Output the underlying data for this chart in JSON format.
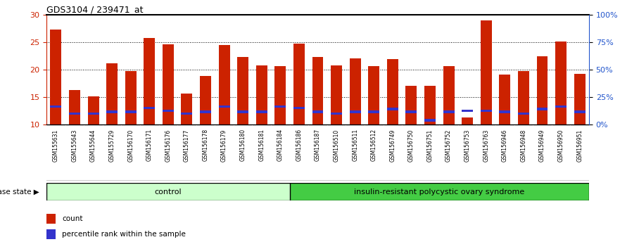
{
  "title": "GDS3104 / 239471_at",
  "samples": [
    "GSM155631",
    "GSM155643",
    "GSM155644",
    "GSM155729",
    "GSM156170",
    "GSM156171",
    "GSM156176",
    "GSM156177",
    "GSM156178",
    "GSM156179",
    "GSM156180",
    "GSM156181",
    "GSM156184",
    "GSM156186",
    "GSM156187",
    "GSM156510",
    "GSM156511",
    "GSM156512",
    "GSM156749",
    "GSM156750",
    "GSM156751",
    "GSM156752",
    "GSM156753",
    "GSM156763",
    "GSM156946",
    "GSM156948",
    "GSM156949",
    "GSM156950",
    "GSM156951"
  ],
  "count_values": [
    27.3,
    16.3,
    15.1,
    21.2,
    19.8,
    25.8,
    24.6,
    15.7,
    18.8,
    24.5,
    22.3,
    20.8,
    20.7,
    24.8,
    22.3,
    20.8,
    22.1,
    20.6,
    22.0,
    17.0,
    17.1,
    20.7,
    11.3,
    29.0,
    19.1,
    19.8,
    22.4,
    25.2,
    19.2
  ],
  "percentile_values": [
    13.3,
    12.0,
    12.0,
    12.3,
    12.3,
    13.0,
    12.5,
    12.0,
    12.3,
    13.3,
    12.3,
    12.3,
    13.3,
    13.0,
    12.3,
    12.0,
    12.3,
    12.3,
    12.8,
    12.3,
    10.8,
    12.3,
    12.5,
    12.5,
    12.3,
    12.0,
    12.8,
    13.3,
    12.3
  ],
  "control_count": 13,
  "control_label": "control",
  "disease_label": "insulin-resistant polycystic ovary syndrome",
  "disease_state_label": "disease state",
  "ymin": 10,
  "ymax": 30,
  "yticks_left": [
    10,
    15,
    20,
    25,
    30
  ],
  "yticks_right": [
    0,
    25,
    50,
    75,
    100
  ],
  "bar_color": "#cc2200",
  "percentile_color": "#3333cc",
  "bar_width": 0.6,
  "plot_bg": "#ffffff",
  "control_bg": "#ccffcc",
  "disease_bg": "#44cc44",
  "xticklabel_bg": "#cccccc",
  "legend_count_label": "count",
  "legend_percentile_label": "percentile rank within the sample",
  "left_axis_color": "#cc2200",
  "right_axis_color": "#2255cc"
}
